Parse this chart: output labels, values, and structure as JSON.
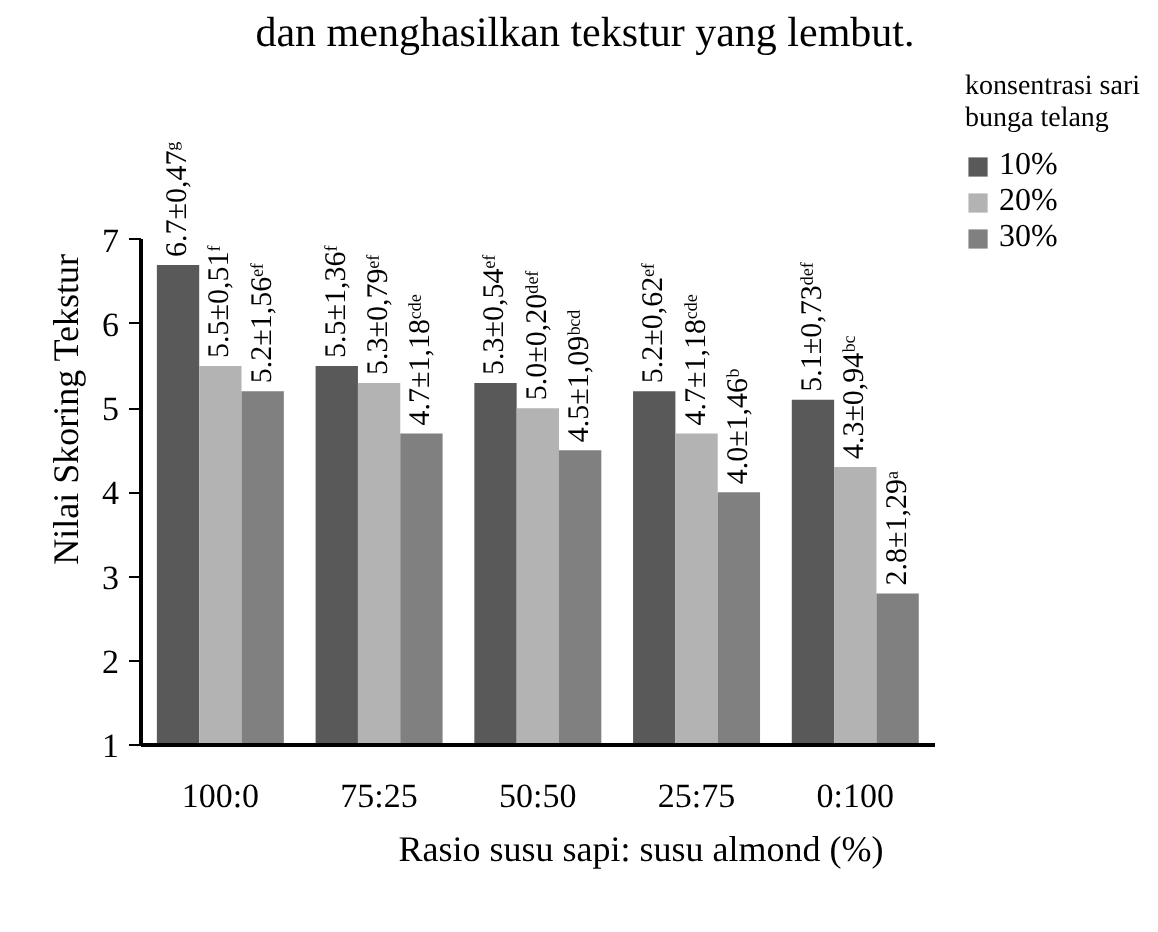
{
  "chart_data": {
    "type": "bar",
    "xlabel": "Rasio susu sapi: susu almond (%)",
    "ylabel": "Nilai Skoring Tekstur",
    "legend_title": "konsentrasi sari\nbunga telang",
    "annotations": [
      "dan menghasilkan tekstur yang lembut."
    ],
    "categories": [
      "100:0",
      "75:25",
      "50:50",
      "25:75",
      "0:100"
    ],
    "series": [
      {
        "name": "10%",
        "color": "#595959",
        "values": [
          6.7,
          5.5,
          5.3,
          5.2,
          5.1
        ],
        "value_labels": [
          "6.7±0,47ᵍ",
          "5.5±1,36ᶠ",
          "5.3±0,54ᵉᶠ",
          "5.2±0,62ᵉᶠ",
          "5.1±0,73ᵈᵉᶠ"
        ]
      },
      {
        "name": "20%",
        "color": "#b3b3b3",
        "values": [
          5.5,
          5.3,
          5.0,
          4.7,
          4.3
        ],
        "value_labels": [
          "5.5±0,51ᶠ",
          "5.3±0,79ᵉᶠ",
          "5.0±0,20ᵈᵉᶠ",
          "4.7±1,18ᶜᵈᵉ",
          "4.3±0,94ᵇᶜ"
        ]
      },
      {
        "name": "30%",
        "color": "#808080",
        "values": [
          5.2,
          4.7,
          4.5,
          4.0,
          2.8
        ],
        "value_labels": [
          "5.2±1,56ᵉᶠ",
          "4.7±1,18ᶜᵈᵉ",
          "4.5±1,09ᵇᶜᵈ",
          "4.0±1,46ᵇ",
          "2.8±1,29ᵃ"
        ]
      }
    ],
    "ylim": [
      1,
      7
    ],
    "yticks": [
      1,
      2,
      3,
      4,
      5,
      6,
      7
    ],
    "grid": false,
    "legend": "top right"
  }
}
